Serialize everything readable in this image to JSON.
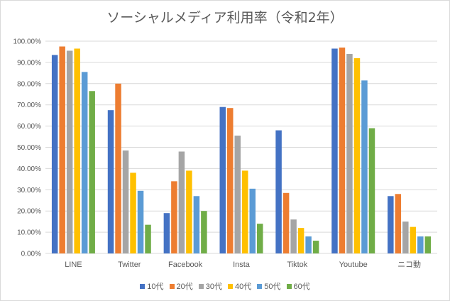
{
  "chart_data": {
    "type": "bar",
    "title": "ソーシャルメディア利用率（令和2年）",
    "categories": [
      "LINE",
      "Twitter",
      "Facebook",
      "Insta",
      "Tiktok",
      "Youtube",
      "ニコ動"
    ],
    "ylim": [
      0,
      100
    ],
    "yticks": [
      "0.00%",
      "10.00%",
      "20.00%",
      "30.00%",
      "40.00%",
      "50.00%",
      "60.00%",
      "70.00%",
      "80.00%",
      "90.00%",
      "100.00%"
    ],
    "grid": true,
    "legend_position": "bottom",
    "series": [
      {
        "name": "10代",
        "color": "#4472C4",
        "values": [
          93.5,
          67.5,
          19.0,
          69.0,
          58.0,
          96.5,
          27.0
        ]
      },
      {
        "name": "20代",
        "color": "#ED7D31",
        "values": [
          97.5,
          80.0,
          34.0,
          68.5,
          28.5,
          97.0,
          28.0
        ]
      },
      {
        "name": "30代",
        "color": "#A5A5A5",
        "values": [
          95.5,
          48.5,
          48.0,
          55.5,
          16.0,
          94.0,
          15.0
        ]
      },
      {
        "name": "40代",
        "color": "#FFC000",
        "values": [
          96.5,
          38.0,
          39.0,
          39.0,
          12.0,
          92.0,
          12.5
        ]
      },
      {
        "name": "50代",
        "color": "#5B9BD5",
        "values": [
          85.5,
          29.5,
          27.0,
          30.5,
          8.0,
          81.5,
          8.0
        ]
      },
      {
        "name": "60代",
        "color": "#70AD47",
        "values": [
          76.5,
          13.5,
          20.0,
          14.0,
          6.0,
          59.0,
          8.0
        ]
      }
    ]
  }
}
